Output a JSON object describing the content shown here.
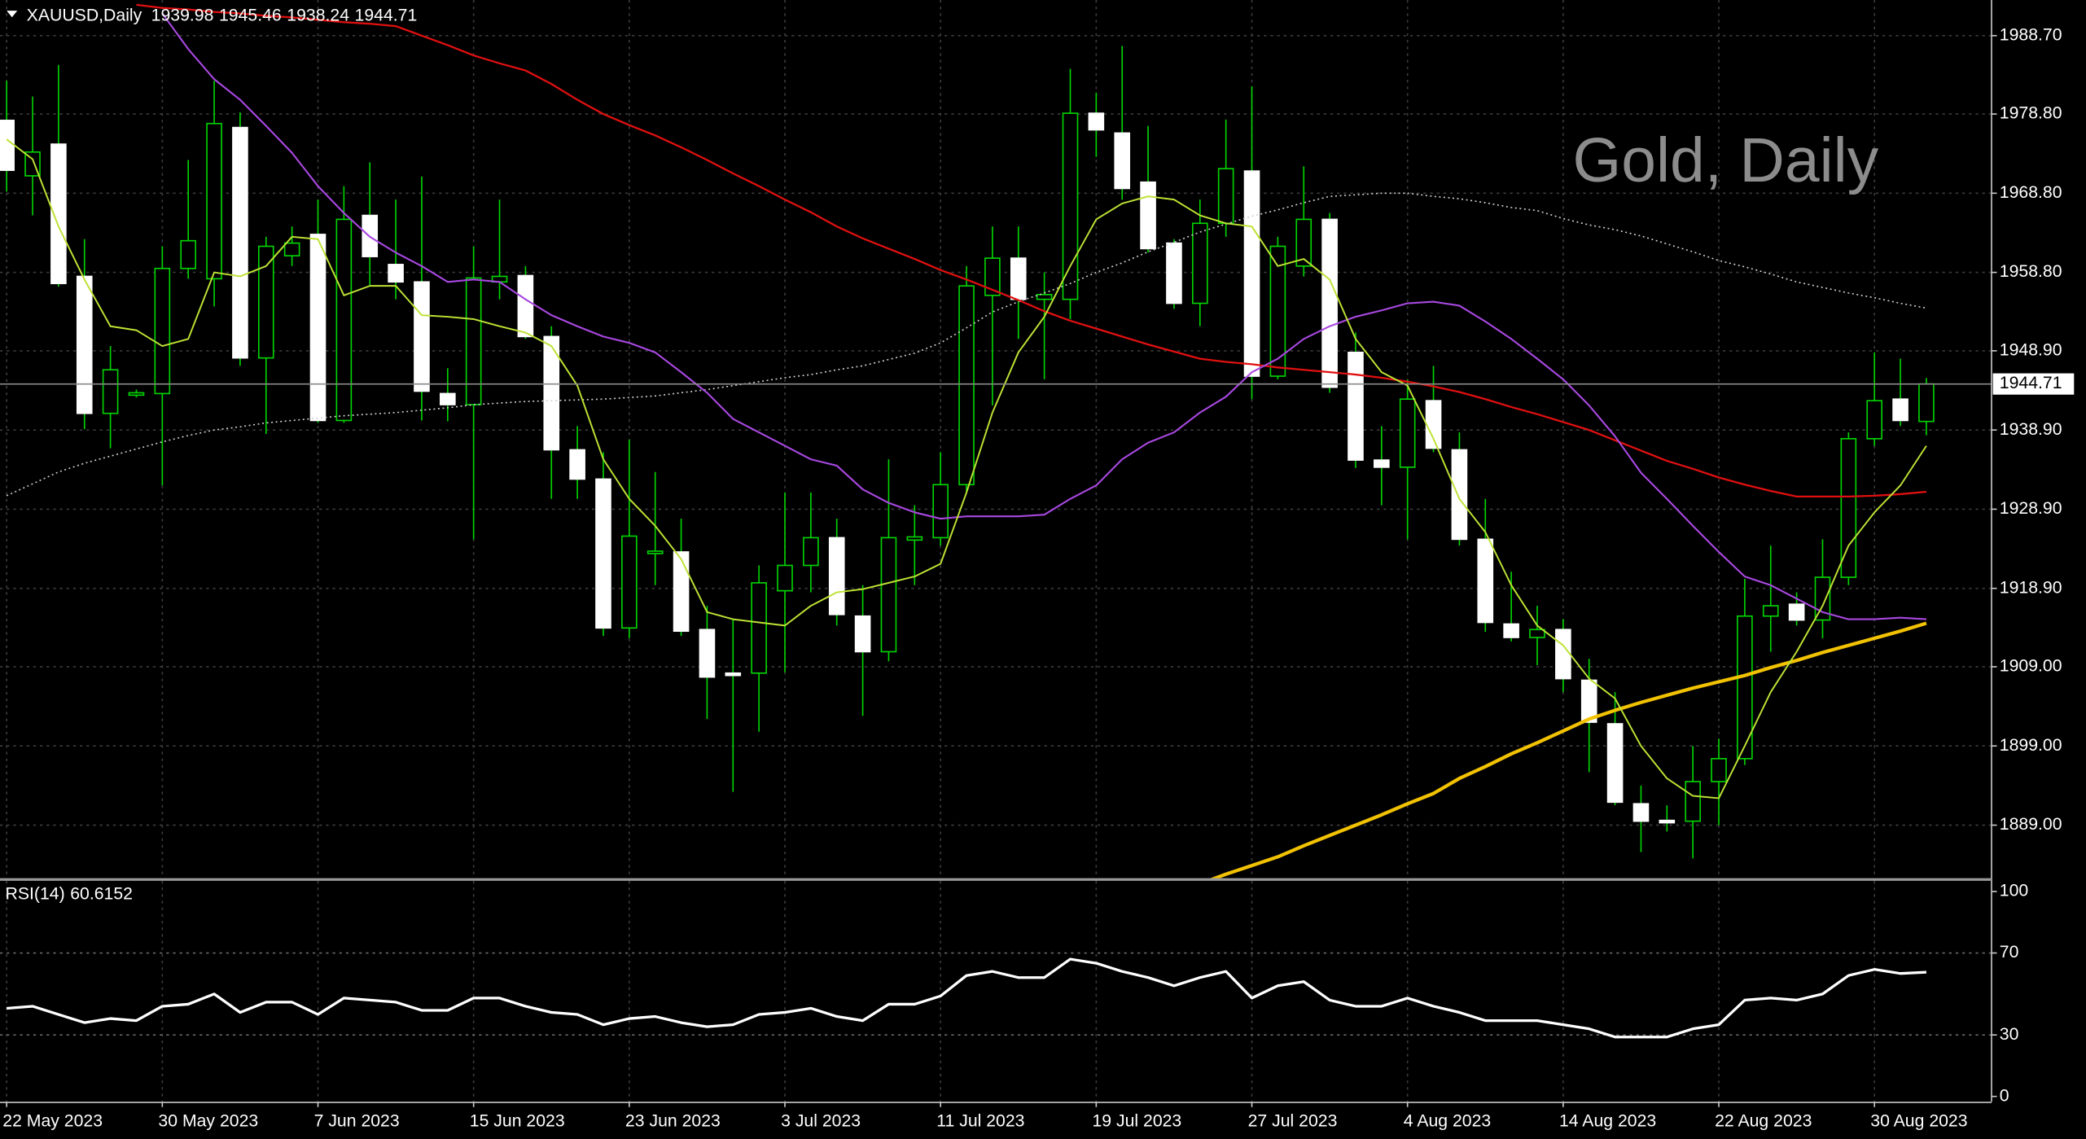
{
  "chart_data": [
    {
      "type": "candlestick",
      "symbol": "XAUUSD,Daily",
      "watermark": "Gold, Daily",
      "categories": [
        "22 May 2023",
        null,
        null,
        null,
        null,
        null,
        "30 May 2023",
        null,
        null,
        null,
        null,
        null,
        "7 Jun 2023",
        null,
        null,
        null,
        null,
        null,
        "15 Jun 2023",
        null,
        null,
        null,
        null,
        null,
        "23 Jun 2023",
        null,
        null,
        null,
        null,
        null,
        "3 Jul 2023",
        null,
        null,
        null,
        null,
        null,
        "11 Jul 2023",
        null,
        null,
        null,
        null,
        null,
        "19 Jul 2023",
        null,
        null,
        null,
        null,
        null,
        "27 Jul 2023",
        null,
        null,
        null,
        null,
        null,
        "4 Aug 2023",
        null,
        null,
        null,
        null,
        null,
        "14 Aug 2023",
        null,
        null,
        null,
        null,
        null,
        "22 Aug 2023",
        null,
        null,
        null,
        null,
        null,
        "30 Aug 2023",
        null,
        null
      ],
      "open": [
        1978,
        1971,
        1975,
        1958.3,
        1941,
        1943.3,
        1943.5,
        1959.3,
        1958,
        1977.1,
        1948,
        1960.9,
        1963.6,
        1940.1,
        1966,
        1959.8,
        1957.6,
        1943.5,
        1942.1,
        1957.6,
        1958.4,
        1950.7,
        1936.4,
        1932.7,
        1913.9,
        1923.3,
        1923.5,
        1913.7,
        1908.2,
        1908.2,
        1918.6,
        1921.8,
        1925.3,
        1915.4,
        1910.9,
        1925,
        1925.3,
        1932,
        1955.9,
        1960.6,
        1955.4,
        1955.4,
        1978.9,
        1976.4,
        1970.2,
        1962.5,
        1954.9,
        1965,
        1971.6,
        1945.7,
        1959.6,
        1965.5,
        1948.7,
        1935.1,
        1934.2,
        1942.6,
        1936.4,
        1925.1,
        1914.4,
        1912.7,
        1913.7,
        1907.3,
        1901.8,
        1891.7,
        1889.6,
        1889.5,
        1894.5,
        1897.4,
        1915.4,
        1916.9,
        1914.9,
        1920.3,
        1937.8,
        1942.8,
        1939.98
      ],
      "high": [
        1983,
        1981,
        1985,
        1963,
        1949.5,
        1944,
        1962.1,
        1973,
        1983,
        1979,
        1963.3,
        1964.6,
        1968,
        1969.7,
        1972.7,
        1968,
        1970.9,
        1946.7,
        1962.1,
        1968,
        1959.6,
        1952,
        1939.4,
        1936.1,
        1937.7,
        1933.6,
        1927.7,
        1916.7,
        1915,
        1921.8,
        1931,
        1931,
        1927.7,
        1919.3,
        1935.2,
        1929.4,
        1936.1,
        1959.6,
        1964.6,
        1964.6,
        1958.8,
        1984.5,
        1981.5,
        1987.4,
        1977.3,
        1963,
        1968,
        1978.1,
        1982.3,
        1963.3,
        1972.2,
        1966.3,
        1951.2,
        1939.4,
        1945.3,
        1947,
        1938.6,
        1930.2,
        1921,
        1916.7,
        1915,
        1910,
        1905.8,
        1894,
        1891.5,
        1899,
        1899.9,
        1920.1,
        1924.3,
        1918.4,
        1925.1,
        1938.6,
        1948.7,
        1947.9,
        1945.46
      ],
      "low": [
        1969,
        1966,
        1957,
        1939,
        1936.6,
        1943,
        1931.9,
        1958,
        1954.5,
        1947,
        1938.4,
        1959.6,
        1939.8,
        1939.8,
        1957.1,
        1955.4,
        1940.1,
        1940,
        1925.1,
        1955.4,
        1950.4,
        1930.2,
        1930.2,
        1912.9,
        1912.6,
        1919.3,
        1912.9,
        1902.4,
        1893.2,
        1900.8,
        1908.3,
        1918.4,
        1914.2,
        1902.8,
        1909.7,
        1919.3,
        1924.3,
        1931,
        1942,
        1950.4,
        1945.3,
        1952.9,
        1973.4,
        1968,
        1961.3,
        1954.2,
        1952,
        1963.3,
        1942.8,
        1945.3,
        1958.3,
        1943.6,
        1934.1,
        1929.4,
        1925.1,
        1936.1,
        1924.3,
        1913.4,
        1912.2,
        1909.2,
        1905.8,
        1895.7,
        1891.5,
        1885.6,
        1888.2,
        1884.8,
        1889,
        1896.6,
        1910.9,
        1914.2,
        1912.6,
        1919.3,
        1936.9,
        1939.4,
        1938.24
      ],
      "close": [
        1971.7,
        1974,
        1957.4,
        1941,
        1946.5,
        1943.6,
        1959.3,
        1962.8,
        1977.6,
        1948,
        1962.1,
        1962.5,
        1940.1,
        1965.5,
        1960.8,
        1957.6,
        1943.8,
        1942.1,
        1958.1,
        1958.3,
        1950.7,
        1936.4,
        1932.7,
        1913.9,
        1925.5,
        1923.6,
        1913.5,
        1907.7,
        1907.9,
        1919.6,
        1921.8,
        1925.3,
        1915.6,
        1910.9,
        1925.3,
        1925.4,
        1932,
        1957.1,
        1960.6,
        1955.4,
        1956,
        1978.9,
        1976.8,
        1969.4,
        1961.8,
        1954.9,
        1965,
        1971.9,
        1945.7,
        1962.1,
        1965.5,
        1944.3,
        1935.1,
        1934.2,
        1942.8,
        1936.6,
        1925.1,
        1914.6,
        1912.7,
        1913.7,
        1907.5,
        1902,
        1891.9,
        1889.5,
        1889.3,
        1894.5,
        1897.4,
        1915.4,
        1916.7,
        1914.9,
        1920.3,
        1937.8,
        1942.6,
        1940.1,
        1944.71
      ],
      "up_color": "#00d400",
      "down_color": "#ffffff",
      "ylim": [
        1882.3,
        1993.2
      ],
      "yticks": [
        {
          "value": 1889,
          "label": "1889.00"
        },
        {
          "value": 1899,
          "label": "1899.00"
        },
        {
          "value": 1909,
          "label": "1909.00"
        },
        {
          "value": 1918.9,
          "label": "1918.90"
        },
        {
          "value": 1928.9,
          "label": "1928.90"
        },
        {
          "value": 1938.9,
          "label": "1938.90"
        },
        {
          "value": 1948.9,
          "label": "1948.90"
        },
        {
          "value": 1958.8,
          "label": "1958.80"
        },
        {
          "value": 1968.8,
          "label": "1968.80"
        },
        {
          "value": 1978.8,
          "label": "1978.80"
        },
        {
          "value": 1988.7,
          "label": "1988.70"
        }
      ],
      "grid": true,
      "series": [
        {
          "color": "#d0d0d0",
          "line_style": "dotted",
          "values": [
            1930.6,
            1932.1,
            1933.6,
            1934.7,
            1935.6,
            1936.5,
            1937.4,
            1938.2,
            1938.9,
            1939.3,
            1939.8,
            1940.1,
            1940.4,
            1940.7,
            1940.9,
            1941.1,
            1941.4,
            1941.7,
            1942.1,
            1942.3,
            1942.5,
            1942.6,
            1942.7,
            1942.8,
            1943.0,
            1943.2,
            1943.6,
            1944.0,
            1944.5,
            1945.0,
            1945.5,
            1945.9,
            1946.5,
            1947.0,
            1947.8,
            1948.6,
            1949.9,
            1951.8,
            1953.8,
            1955.1,
            1956.2,
            1957.4,
            1958.8,
            1960.0,
            1961.4,
            1962.6,
            1963.9,
            1964.9,
            1965.9,
            1966.7,
            1967.6,
            1968.4,
            1968.6,
            1968.8,
            1968.8,
            1968.4,
            1968.1,
            1967.6,
            1967.0,
            1966.6,
            1965.6,
            1964.8,
            1964.2,
            1963.4,
            1962.4,
            1961.4,
            1960.3,
            1959.5,
            1958.6,
            1957.6,
            1956.9,
            1956.2,
            1955.6,
            1954.9,
            1954.3
          ]
        },
        {
          "color": "#f2c200",
          "line_width": 2.6,
          "values": [
            null,
            null,
            null,
            null,
            null,
            null,
            null,
            null,
            null,
            null,
            null,
            null,
            null,
            null,
            null,
            null,
            null,
            null,
            null,
            null,
            null,
            null,
            null,
            null,
            null,
            null,
            null,
            null,
            null,
            null,
            null,
            null,
            null,
            null,
            null,
            null,
            null,
            null,
            null,
            null,
            null,
            null,
            null,
            null,
            null,
            null,
            1881.6,
            1882.8,
            1883.9,
            1885.0,
            1886.4,
            1887.7,
            1889.0,
            1890.3,
            1891.7,
            1893.0,
            1894.9,
            1896.4,
            1898.0,
            1899.4,
            1900.9,
            1902.4,
            1903.5,
            1904.5,
            1905.4,
            1906.3,
            1907.1,
            1907.9,
            1908.9,
            1909.8,
            1910.8,
            1911.7,
            1912.6,
            1913.5,
            1914.5
          ]
        },
        {
          "color": "#e01010",
          "line_width": 1.4,
          "values": [
            null,
            null,
            null,
            null,
            null,
            1992.6,
            1992.2,
            1992.0,
            1991.7,
            1991.5,
            1991.2,
            1991.0,
            1990.7,
            1990.4,
            1990.2,
            1989.9,
            1988.7,
            1987.5,
            1986.2,
            1985.2,
            1984.3,
            1982.6,
            1980.6,
            1978.8,
            1977.4,
            1976.1,
            1974.6,
            1973,
            1971.3,
            1969.7,
            1968,
            1966.4,
            1964.6,
            1963.1,
            1961.8,
            1960.5,
            1959.1,
            1957.9,
            1956.6,
            1955.3,
            1953.9,
            1952.7,
            1951.7,
            1950.7,
            1949.7,
            1948.8,
            1947.9,
            1947.5,
            1947.2,
            1946.8,
            1946.5,
            1946.2,
            1945.9,
            1945.5,
            1945.0,
            1944.4,
            1943.7,
            1942.8,
            1941.8,
            1940.9,
            1939.9,
            1938.9,
            1937.6,
            1936.3,
            1935.0,
            1934,
            1932.9,
            1932.0,
            1931.2,
            1930.5,
            1930.5,
            1930.5,
            1930.6,
            1930.8,
            1931.1
          ]
        },
        {
          "color": "#a848e0",
          "line_width": 1.3,
          "values": [
            null,
            null,
            null,
            null,
            null,
            null,
            1991.5,
            1987,
            1983.2,
            1980.6,
            1977.3,
            1973.9,
            1969.7,
            1966.3,
            1963.3,
            1961.3,
            1959.6,
            1957.6,
            1957.9,
            1957.6,
            1955.4,
            1953.4,
            1952,
            1950.7,
            1949.9,
            1948.7,
            1946.2,
            1943.6,
            1940.3,
            1938.6,
            1936.9,
            1935.2,
            1934.4,
            1931.4,
            1929.7,
            1928.5,
            1927.7,
            1928,
            1928,
            1928,
            1928.2,
            1930.2,
            1931.9,
            1935.2,
            1937.3,
            1938.6,
            1941.1,
            1943.1,
            1946.2,
            1947.9,
            1950.4,
            1952,
            1953.2,
            1954,
            1954.9,
            1955.1,
            1954.6,
            1952.6,
            1950.4,
            1947.9,
            1945.3,
            1942,
            1938.1,
            1933.5,
            1930.2,
            1926.8,
            1923.5,
            1920.4,
            1919.3,
            1917.6,
            1915.9,
            1915,
            1915,
            1915.2,
            1915
          ]
        },
        {
          "color": "#bde234",
          "line_width": 1.2,
          "values": [
            1975.6,
            1973.1,
            1964.6,
            1957.9,
            1952,
            1951.5,
            1949.5,
            1950.4,
            1958.8,
            1958.3,
            1959.6,
            1963.3,
            1963,
            1955.9,
            1957.1,
            1957.1,
            1953.4,
            1953.2,
            1952.9,
            1952,
            1951.2,
            1949.5,
            1944.5,
            1935.2,
            1930.2,
            1926.8,
            1922.6,
            1915.9,
            1915,
            1914.6,
            1914.2,
            1916.7,
            1918.4,
            1918.8,
            1919.6,
            1920.4,
            1922,
            1931,
            1941.1,
            1948.7,
            1953.2,
            1959.6,
            1965.5,
            1967.5,
            1968.4,
            1968,
            1966,
            1965,
            1964.6,
            1959.6,
            1960.5,
            1957.9,
            1950.4,
            1946.2,
            1944.5,
            1937.8,
            1930.2,
            1926,
            1919.3,
            1914.2,
            1911.7,
            1907.5,
            1905,
            1899,
            1894.9,
            1892.7,
            1892.4,
            1899,
            1905.8,
            1910.9,
            1916.7,
            1924.3,
            1928.5,
            1931.9,
            1936.9
          ]
        }
      ]
    },
    {
      "type": "line",
      "title": "RSI(14)",
      "color": "#ffffff",
      "values": [
        43,
        44,
        40,
        36,
        38,
        37,
        44,
        45,
        50,
        41,
        46,
        46,
        40,
        48,
        47,
        46,
        42,
        42,
        48,
        48,
        44,
        41,
        40,
        35,
        38,
        39,
        36,
        34,
        35,
        40,
        41,
        43,
        39,
        37,
        45,
        45,
        49,
        59,
        61,
        58,
        58,
        67,
        65,
        61,
        58,
        54,
        58,
        61,
        48,
        54,
        56,
        47,
        44,
        44,
        48,
        44,
        41,
        37,
        37,
        37,
        35,
        33,
        29,
        29,
        29,
        33,
        35,
        47,
        48,
        47,
        50,
        59,
        62,
        60,
        60.6152
      ],
      "ylim": [
        -2.6,
        105.2
      ],
      "yticks": [
        100,
        70,
        30,
        0
      ],
      "levels": [
        70,
        30
      ]
    }
  ]
}
